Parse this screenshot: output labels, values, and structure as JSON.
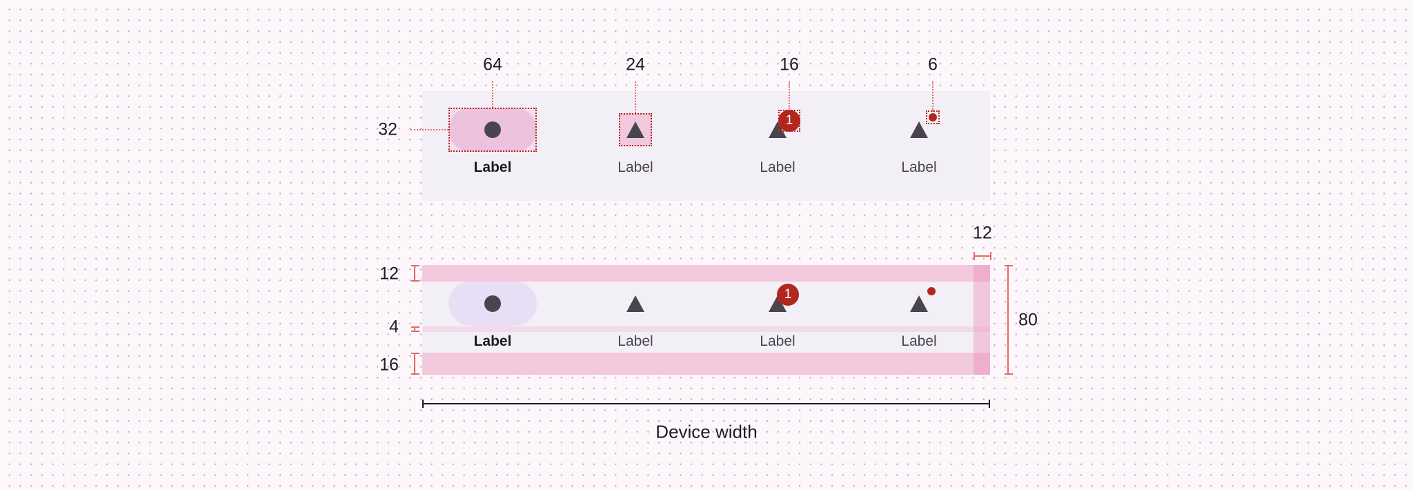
{
  "colors": {
    "background": "#fdf7fc",
    "panel": "#f3eff6",
    "padding_band": "#f2c8dc",
    "active_indicator_spec": "#e8bfe0",
    "active_indicator": "#e8def6",
    "badge": "#b3261e",
    "icon": "#49454f",
    "measure": "#e46962"
  },
  "spec_panel": {
    "dimensions": {
      "indicator_width": "64",
      "indicator_height": "32",
      "icon_size": "24",
      "badge_size": "16",
      "small_badge_size": "6"
    },
    "items": [
      {
        "label": "Label",
        "icon": "circle-icon",
        "active": true
      },
      {
        "label": "Label",
        "icon": "triangle-icon"
      },
      {
        "label": "Label",
        "icon": "triangle-icon",
        "badge": "1"
      },
      {
        "label": "Label",
        "icon": "triangle-icon",
        "small_badge": true
      }
    ]
  },
  "layout_panel": {
    "dimensions": {
      "top_padding": "12",
      "label_gap": "4",
      "bottom_padding": "16",
      "side_padding": "12",
      "height": "80"
    },
    "items": [
      {
        "label": "Label",
        "icon": "circle-icon",
        "active": true
      },
      {
        "label": "Label",
        "icon": "triangle-icon"
      },
      {
        "label": "Label",
        "icon": "triangle-icon",
        "badge": "1"
      },
      {
        "label": "Label",
        "icon": "triangle-icon",
        "small_badge": true
      }
    ],
    "width_label": "Device width"
  }
}
